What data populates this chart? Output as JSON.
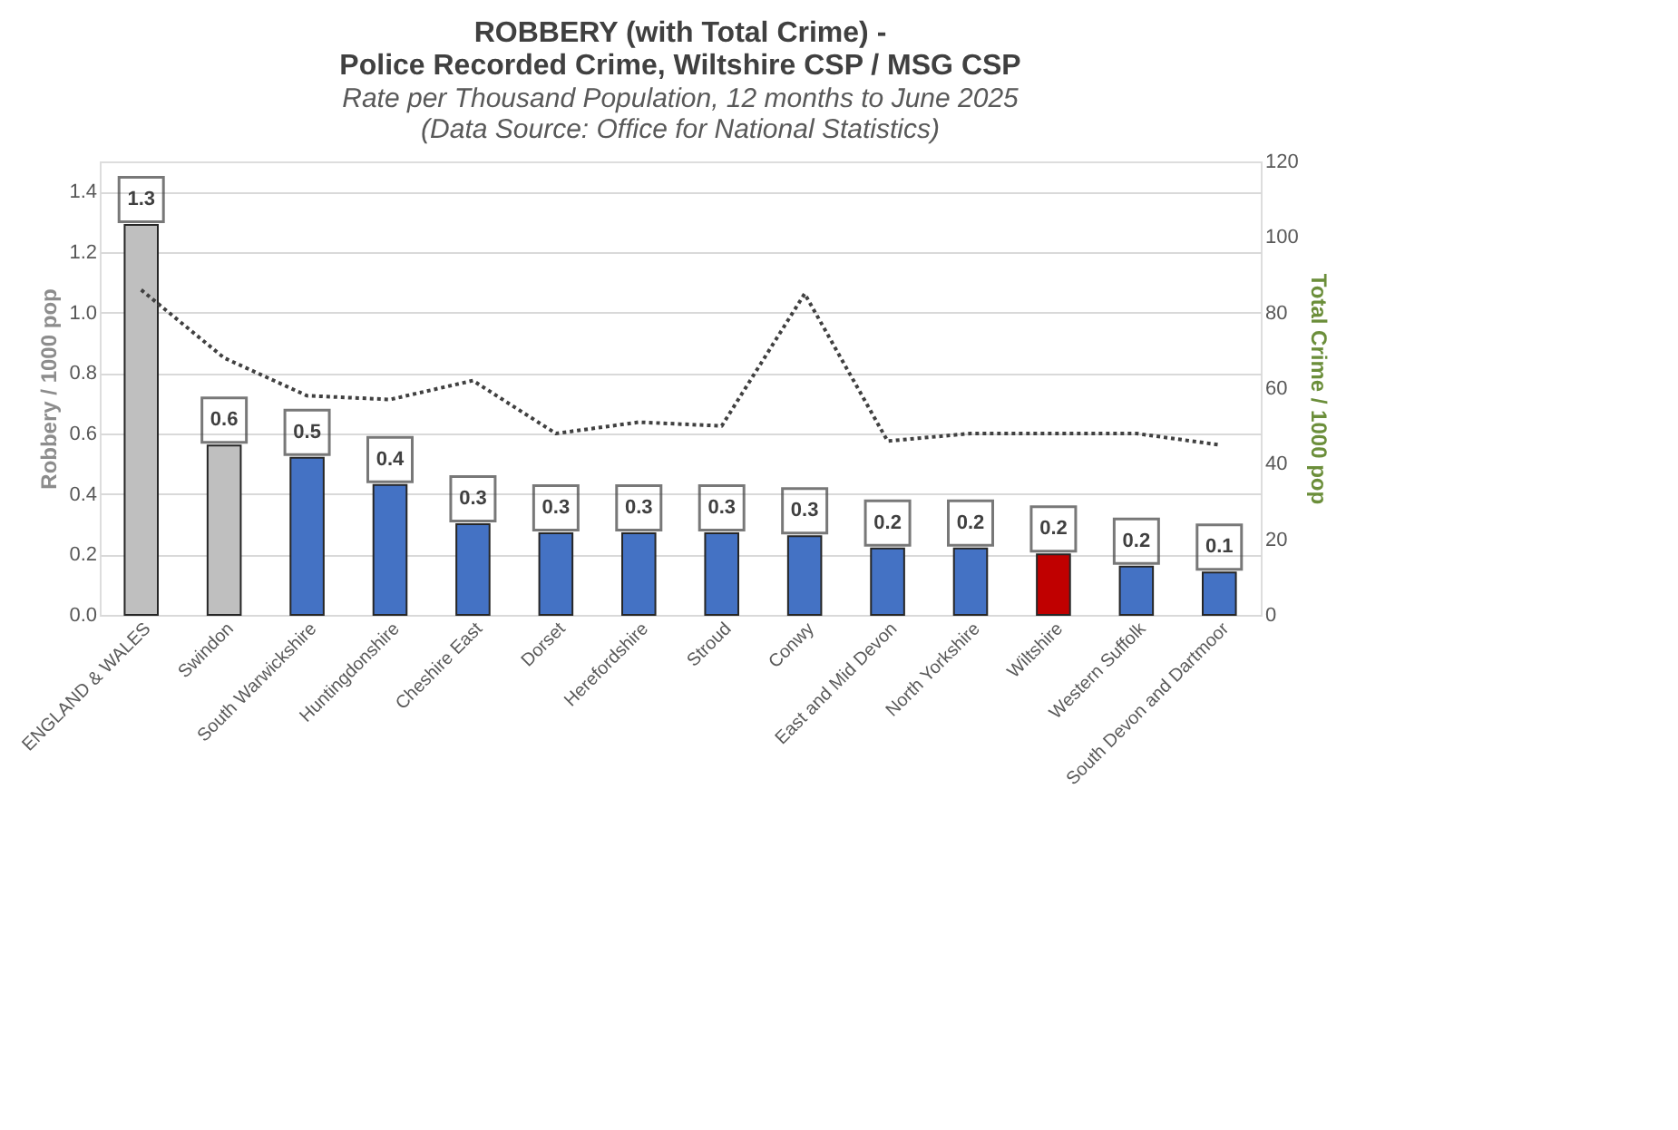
{
  "chart_data": {
    "type": "bar",
    "title": [
      "ROBBERY (with Total Crime) -",
      "Police Recorded Crime, Wiltshire CSP / MSG CSP"
    ],
    "subtitle": "Rate per Thousand Population, 12 months to June 2025",
    "annotations": [
      "(Data Source:  Office for National Statistics)"
    ],
    "categories": [
      "ENGLAND & WALES",
      "Swindon",
      "South Warwickshire",
      "Huntingdonshire",
      "Cheshire East",
      "Dorset",
      "Herefordshire",
      "Stroud",
      "Conwy",
      "East and Mid Devon",
      "North Yorkshire",
      "Wiltshire",
      "Western Suffolk",
      "South Devon and Dartmoor"
    ],
    "series": [
      {
        "values": [
          1.29,
          0.56,
          0.52,
          0.43,
          0.3,
          0.27,
          0.27,
          0.27,
          0.26,
          0.22,
          0.22,
          0.2,
          0.16,
          0.14
        ],
        "colors": [
          "#bfbfbf",
          "#bfbfbf",
          "#4472c4",
          "#4472c4",
          "#4472c4",
          "#4472c4",
          "#4472c4",
          "#4472c4",
          "#4472c4",
          "#4472c4",
          "#4472c4",
          "#c00000",
          "#4472c4",
          "#4472c4"
        ],
        "value_labels": [
          "1.3",
          "0.6",
          "0.5",
          "0.4",
          "0.3",
          "0.3",
          "0.3",
          "0.3",
          "0.3",
          "0.2",
          "0.2",
          "0.2",
          "0.2",
          "0.1"
        ]
      },
      {
        "type": "line",
        "axis": "y2",
        "color": "#404040",
        "line_style": "dotted",
        "values": [
          86,
          68,
          58,
          57,
          62,
          48,
          51,
          50,
          85,
          46,
          48,
          48,
          48,
          45
        ]
      }
    ],
    "ylabel": "Robbery / 1000 pop",
    "y2label": "Total Crime / 1000 pop",
    "ylim": [
      0,
      1.5
    ],
    "yticks": [
      {
        "value": 0,
        "label": "0.0"
      },
      0.2,
      0.4,
      0.6,
      0.8,
      {
        "value": 1,
        "label": "1.0"
      },
      1.2,
      1.4
    ],
    "y2lim": [
      0,
      120
    ],
    "y2ticks": [
      0,
      20,
      40,
      60,
      80,
      100,
      120
    ],
    "grid": "y"
  }
}
